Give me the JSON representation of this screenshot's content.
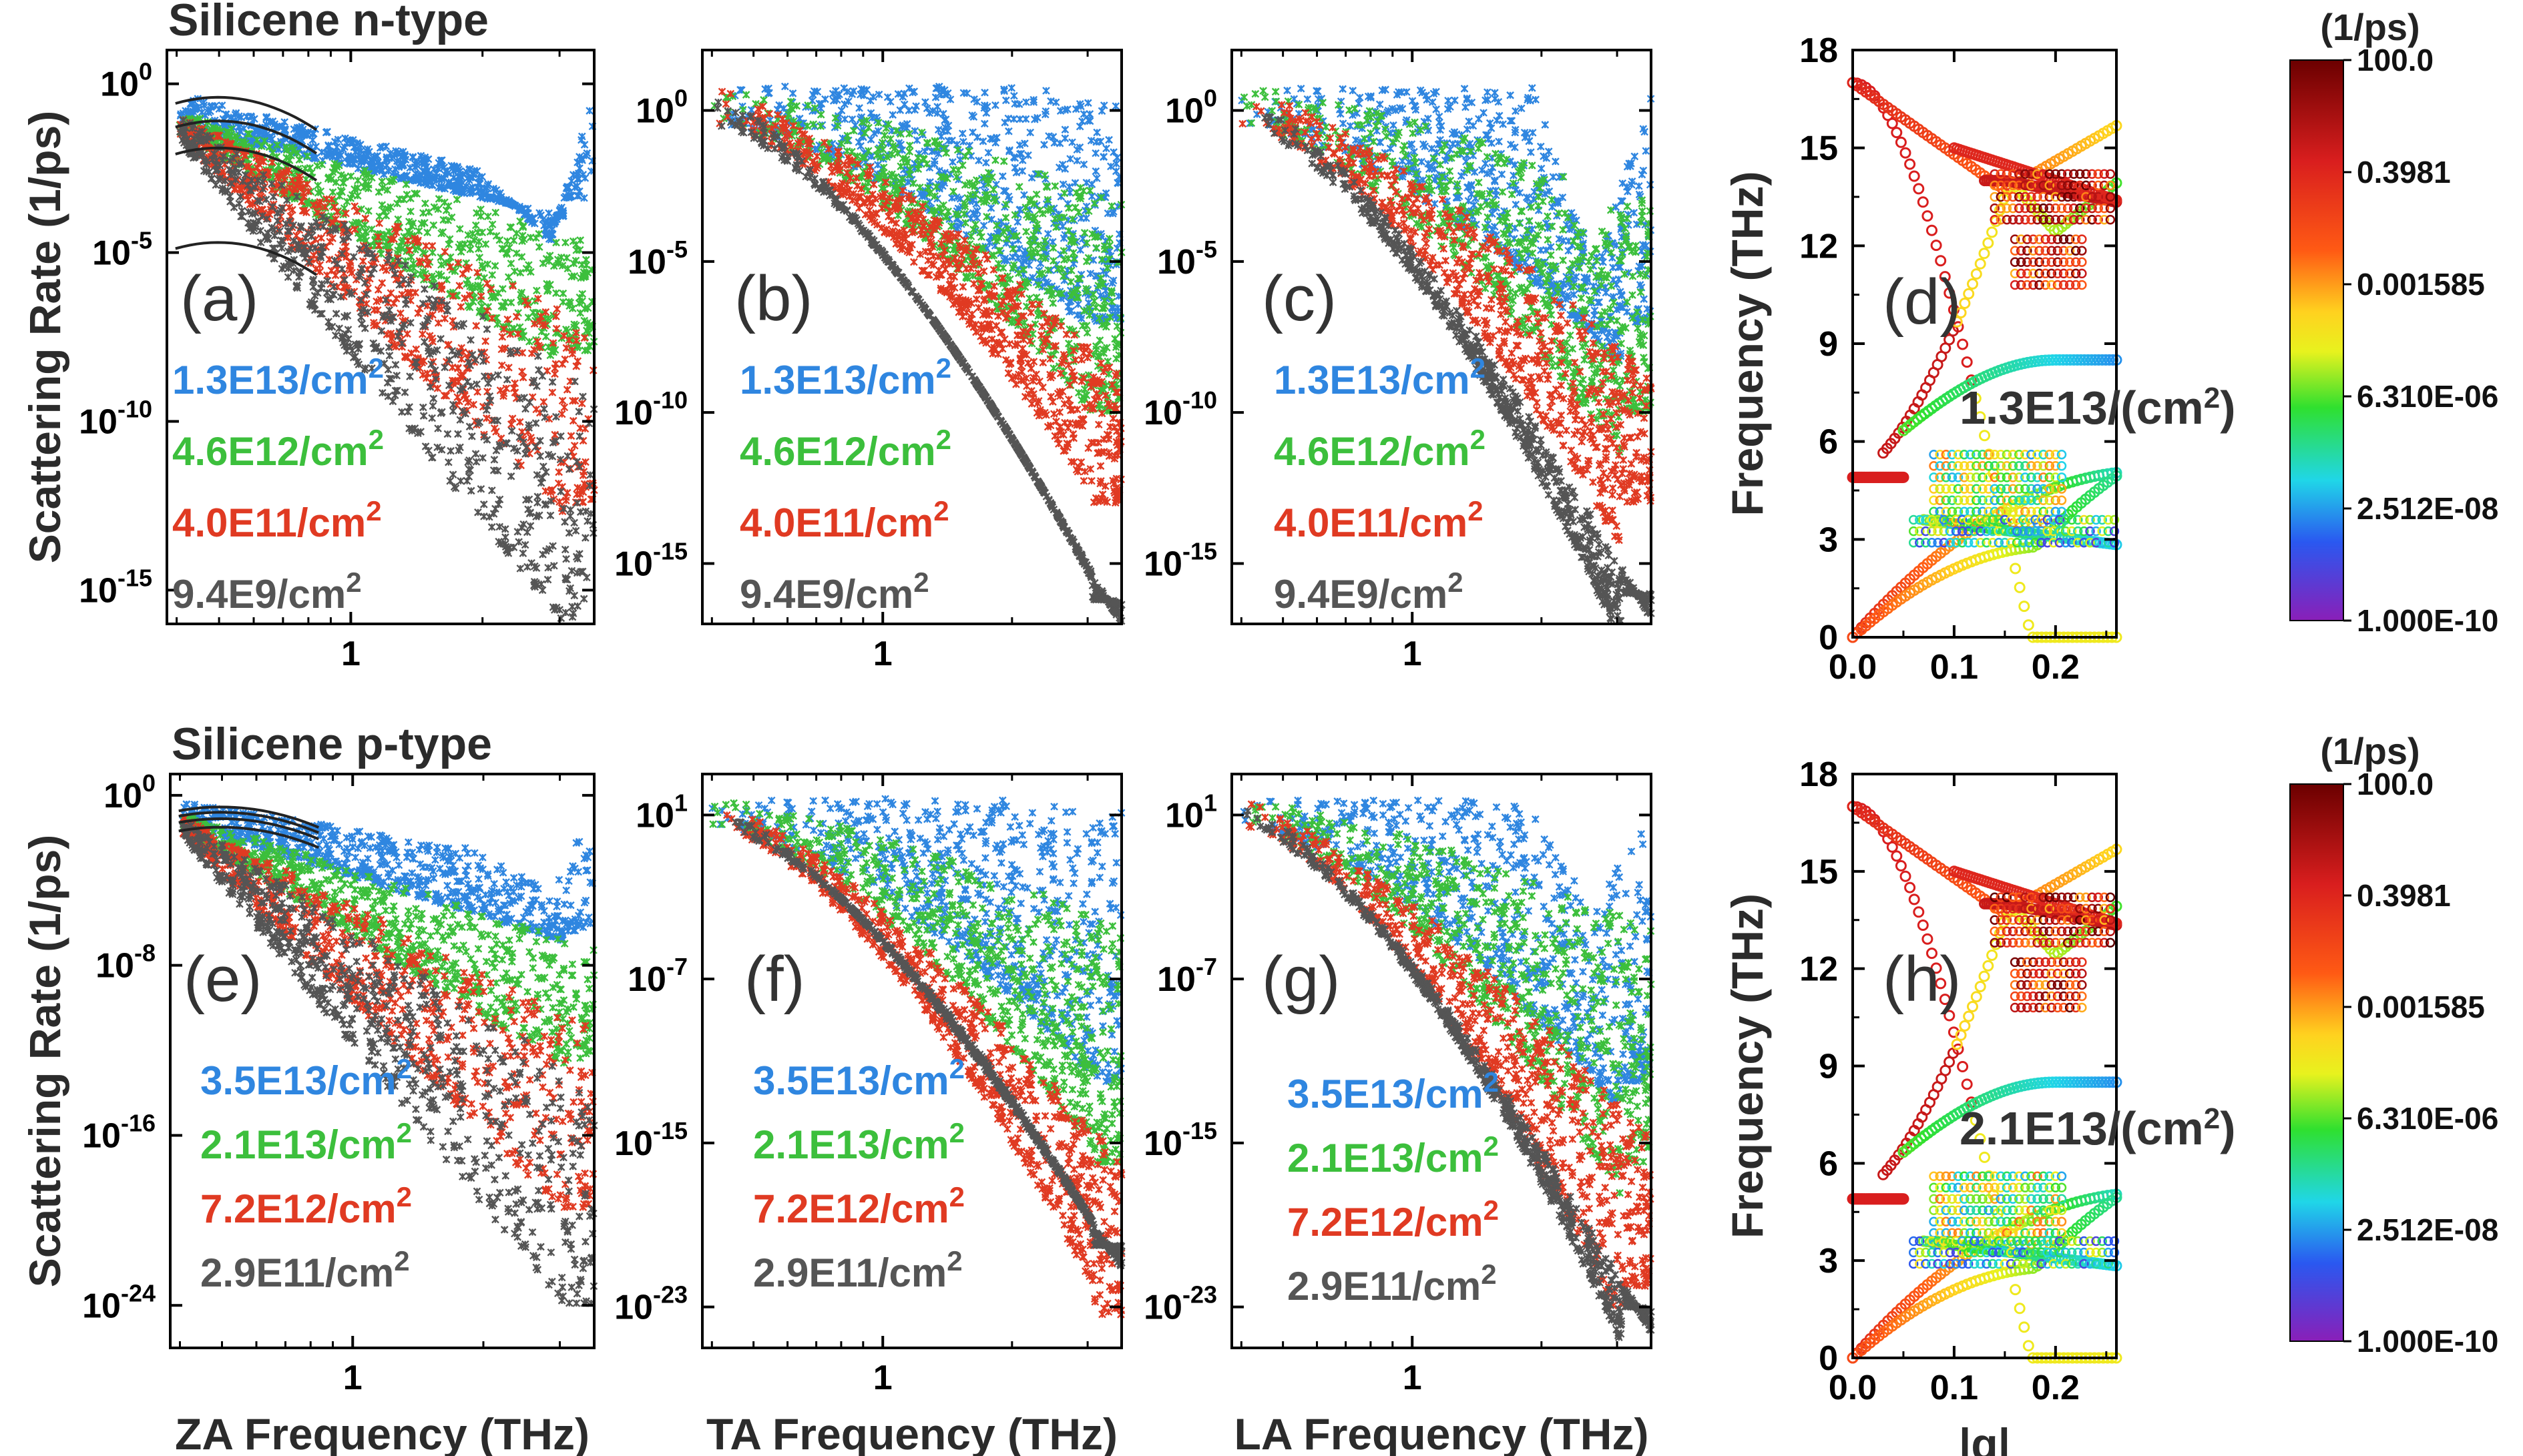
{
  "chart_data": [
    {
      "id": "a",
      "type": "scatter",
      "row": "Silicene n-type",
      "title": "Silicene n-type",
      "panel_label": "(a)",
      "xlabel": "",
      "ylabel": "Scattering Rate (1/ps)",
      "xscale": "log",
      "xlim": [
        0.38,
        3.6
      ],
      "xticks": [
        {
          "v": 1,
          "label": "1"
        }
      ],
      "yscale": "log",
      "ylim": [
        1e-16,
        10.0
      ],
      "yticks": [
        {
          "v": 1,
          "base": "10",
          "exp": "0"
        },
        {
          "v": 1e-05,
          "base": "10",
          "exp": "-5"
        },
        {
          "v": 1e-10,
          "base": "10",
          "exp": "-10"
        },
        {
          "v": 1e-15,
          "base": "10",
          "exp": "-15"
        }
      ],
      "series": [
        {
          "name": "1.3E13/cm",
          "sup": "2",
          "color": "#2f86e0",
          "curve": "za",
          "low": -3.0
        },
        {
          "name": "4.6E12/cm",
          "sup": "2",
          "color": "#3cbf3c",
          "curve": "za",
          "low": -7.5
        },
        {
          "name": "4.0E11/cm",
          "sup": "2",
          "color": "#e03a22",
          "curve": "za",
          "low": -12.0
        },
        {
          "name": "9.4E9/cm",
          "sup": "2",
          "color": "#555555",
          "curve": "za",
          "low": -15.4
        }
      ],
      "fit_lines": [
        0.3,
        -0.4,
        -1.2,
        -4.0
      ]
    },
    {
      "id": "b",
      "type": "scatter",
      "row": "Silicene n-type",
      "panel_label": "(b)",
      "xlabel": "",
      "xscale": "log",
      "xlim": [
        0.38,
        3.6
      ],
      "xticks": [
        {
          "v": 1,
          "label": "1"
        }
      ],
      "yscale": "log",
      "ylim": [
        1e-17,
        100.0
      ],
      "yticks": [
        {
          "v": 1,
          "base": "10",
          "exp": "0"
        },
        {
          "v": 1e-05,
          "base": "10",
          "exp": "-5"
        },
        {
          "v": 1e-10,
          "base": "10",
          "exp": "-10"
        },
        {
          "v": 1e-15,
          "base": "10",
          "exp": "-15"
        }
      ],
      "series": [
        {
          "name": "1.3E13/cm",
          "sup": "2",
          "color": "#2f86e0",
          "curve": "ta",
          "low": -7.0
        },
        {
          "name": "4.6E12/cm",
          "sup": "2",
          "color": "#3cbf3c",
          "curve": "ta",
          "low": -10.0
        },
        {
          "name": "4.0E11/cm",
          "sup": "2",
          "color": "#e03a22",
          "curve": "ta",
          "low": -13.0
        },
        {
          "name": "9.4E9/cm",
          "sup": "2",
          "color": "#555555",
          "curve": "ta",
          "low": -16.2
        }
      ]
    },
    {
      "id": "c",
      "type": "scatter",
      "row": "Silicene n-type",
      "panel_label": "(c)",
      "xlabel": "",
      "xscale": "log",
      "xlim": [
        0.38,
        3.6
      ],
      "xticks": [
        {
          "v": 1,
          "label": "1"
        }
      ],
      "yscale": "log",
      "ylim": [
        1e-17,
        100.0
      ],
      "yticks": [
        {
          "v": 1,
          "base": "10",
          "exp": "0"
        },
        {
          "v": 1e-05,
          "base": "10",
          "exp": "-5"
        },
        {
          "v": 1e-10,
          "base": "10",
          "exp": "-10"
        },
        {
          "v": 1e-15,
          "base": "10",
          "exp": "-15"
        }
      ],
      "series": [
        {
          "name": "1.3E13/cm",
          "sup": "2",
          "color": "#2f86e0",
          "curve": "la",
          "low": -7.0
        },
        {
          "name": "4.6E12/cm",
          "sup": "2",
          "color": "#3cbf3c",
          "curve": "la",
          "low": -10.0
        },
        {
          "name": "4.0E11/cm",
          "sup": "2",
          "color": "#e03a22",
          "curve": "la",
          "low": -13.0
        },
        {
          "name": "9.4E9/cm",
          "sup": "2",
          "color": "#555555",
          "curve": "la",
          "low": -16.0
        }
      ]
    },
    {
      "id": "d",
      "type": "scatter",
      "row": "Silicene n-type",
      "panel_label": "(d)",
      "xlabel": "",
      "ylabel": "Frequency (THz)",
      "annotation": "1.3E13/(cm",
      "annotation_sup": "2",
      "annotation_tail": ")",
      "xscale": "linear",
      "xlim": [
        0,
        0.26
      ],
      "xticks": [
        {
          "v": 0,
          "label": "0.0"
        },
        {
          "v": 0.1,
          "label": "0.1"
        },
        {
          "v": 0.2,
          "label": "0.2"
        }
      ],
      "yscale": "linear",
      "ylim": [
        0,
        18
      ],
      "yticks": [
        {
          "v": 0,
          "label": "0"
        },
        {
          "v": 3,
          "label": "3"
        },
        {
          "v": 6,
          "label": "6"
        },
        {
          "v": 9,
          "label": "9"
        },
        {
          "v": 12,
          "label": "12"
        },
        {
          "v": 15,
          "label": "15"
        },
        {
          "v": 18,
          "label": "18"
        }
      ],
      "colorbar": {
        "unit": "(1/ps)",
        "labels": [
          "100.0",
          "0.3981",
          "0.001585",
          "6.310E-06",
          "2.512E-08",
          "1.000E-10"
        ]
      }
    },
    {
      "id": "e",
      "type": "scatter",
      "row": "Silicene p-type",
      "title": "Silicene p-type",
      "panel_label": "(e)",
      "xlabel": "ZA Frequency (THz)",
      "ylabel": "Scattering Rate (1/ps)",
      "xscale": "log",
      "xlim": [
        0.38,
        3.6
      ],
      "xticks": [
        {
          "v": 1,
          "label": "1"
        }
      ],
      "yscale": "log",
      "ylim": [
        1e-26,
        10.0
      ],
      "yticks": [
        {
          "v": 1,
          "base": "10",
          "exp": "0"
        },
        {
          "v": 1e-08,
          "base": "10",
          "exp": "-8"
        },
        {
          "v": 1e-16,
          "base": "10",
          "exp": "-16"
        },
        {
          "v": 1e-24,
          "base": "10",
          "exp": "-24"
        }
      ],
      "series": [
        {
          "name": "3.5E13/cm",
          "sup": "2",
          "color": "#2f86e0",
          "curve": "za",
          "low": -6.0
        },
        {
          "name": "2.1E13/cm",
          "sup": "2",
          "color": "#3cbf3c",
          "curve": "za",
          "low": -12.0
        },
        {
          "name": "7.2E12/cm",
          "sup": "2",
          "color": "#e03a22",
          "curve": "za",
          "low": -19.0
        },
        {
          "name": "2.9E11/cm",
          "sup": "2",
          "color": "#555555",
          "curve": "za",
          "low": -23.5
        }
      ],
      "fit_lines": [
        0.15,
        -0.1,
        -0.4,
        -0.8
      ]
    },
    {
      "id": "f",
      "type": "scatter",
      "row": "Silicene p-type",
      "panel_label": "(f)",
      "xlabel": "TA Frequency (THz)",
      "xscale": "log",
      "xlim": [
        0.38,
        3.6
      ],
      "xticks": [
        {
          "v": 1,
          "label": "1"
        }
      ],
      "yscale": "log",
      "ylim": [
        1e-25,
        1000.0
      ],
      "yticks": [
        {
          "v": 10,
          "base": "10",
          "exp": "1"
        },
        {
          "v": 1e-07,
          "base": "10",
          "exp": "-7"
        },
        {
          "v": 1e-15,
          "base": "10",
          "exp": "-15"
        },
        {
          "v": 1e-23,
          "base": "10",
          "exp": "-23"
        }
      ],
      "series": [
        {
          "name": "3.5E13/cm",
          "sup": "2",
          "color": "#2f86e0",
          "curve": "ta",
          "low": -12.0
        },
        {
          "name": "2.1E13/cm",
          "sup": "2",
          "color": "#3cbf3c",
          "curve": "ta",
          "low": -16.0
        },
        {
          "name": "7.2E12/cm",
          "sup": "2",
          "color": "#e03a22",
          "curve": "ta",
          "low": -23.5
        },
        {
          "name": "2.9E11/cm",
          "sup": "2",
          "color": "#555555",
          "curve": "ta",
          "low": -20.0
        }
      ]
    },
    {
      "id": "g",
      "type": "scatter",
      "row": "Silicene p-type",
      "panel_label": "(g)",
      "xlabel": "LA Frequency (THz)",
      "xscale": "log",
      "xlim": [
        0.38,
        3.6
      ],
      "xticks": [
        {
          "v": 1,
          "label": "1"
        }
      ],
      "yscale": "log",
      "ylim": [
        1e-25,
        1000.0
      ],
      "yticks": [
        {
          "v": 10,
          "base": "10",
          "exp": "1"
        },
        {
          "v": 1e-07,
          "base": "10",
          "exp": "-7"
        },
        {
          "v": 1e-15,
          "base": "10",
          "exp": "-15"
        },
        {
          "v": 1e-23,
          "base": "10",
          "exp": "-23"
        }
      ],
      "series": [
        {
          "name": "3.5E13/cm",
          "sup": "2",
          "color": "#2f86e0",
          "curve": "la",
          "low": -12.0
        },
        {
          "name": "2.1E13/cm",
          "sup": "2",
          "color": "#3cbf3c",
          "curve": "la",
          "low": -16.0
        },
        {
          "name": "7.2E12/cm",
          "sup": "2",
          "color": "#e03a22",
          "curve": "la",
          "low": -22.0
        },
        {
          "name": "2.9E11/cm",
          "sup": "2",
          "color": "#555555",
          "curve": "la",
          "low": -23.0
        }
      ]
    },
    {
      "id": "h",
      "type": "scatter",
      "row": "Silicene p-type",
      "panel_label": "(h)",
      "xlabel": "|q|",
      "ylabel": "Frequency (THz)",
      "annotation": "2.1E13/(cm",
      "annotation_sup": "2",
      "annotation_tail": ")",
      "xscale": "linear",
      "xlim": [
        0,
        0.26
      ],
      "xticks": [
        {
          "v": 0,
          "label": "0.0"
        },
        {
          "v": 0.1,
          "label": "0.1"
        },
        {
          "v": 0.2,
          "label": "0.2"
        }
      ],
      "yscale": "linear",
      "ylim": [
        0,
        18
      ],
      "yticks": [
        {
          "v": 0,
          "label": "0"
        },
        {
          "v": 3,
          "label": "3"
        },
        {
          "v": 6,
          "label": "6"
        },
        {
          "v": 9,
          "label": "9"
        },
        {
          "v": 12,
          "label": "12"
        },
        {
          "v": 15,
          "label": "15"
        },
        {
          "v": 18,
          "label": "18"
        }
      ],
      "colorbar": {
        "unit": "(1/ps)",
        "labels": [
          "100.0",
          "0.3981",
          "0.001585",
          "6.310E-06",
          "2.512E-08",
          "1.000E-10"
        ]
      }
    }
  ]
}
